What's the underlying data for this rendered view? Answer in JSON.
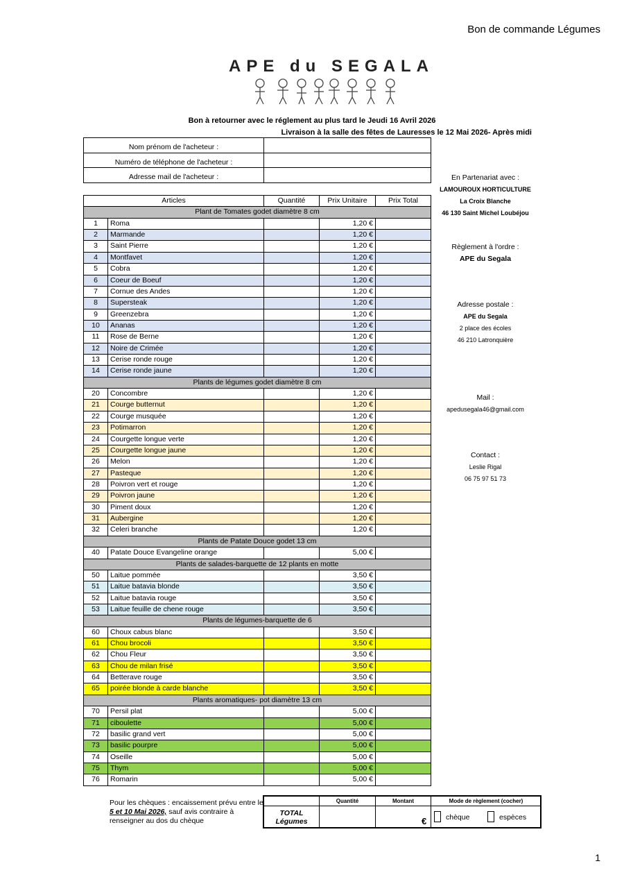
{
  "header": {
    "title": "Bon de commande Légumes",
    "logo": "APE du SEGALA",
    "page_number": "1"
  },
  "instructions": [
    "Bon à retourner avec le réglement au plus tard le Jeudi 16 Avril 2026",
    "Livraison à la salle des fêtes de Lauresses le 12 Mai 2026- Après midi"
  ],
  "buyer_fields": [
    "Nom prénom de l'acheteur :",
    "Numéro de téléphone de l'acheteur :",
    "Adresse mail de l'acheteur :"
  ],
  "table": {
    "columns": [
      "Articles",
      "Quantité",
      "Prix Unitaire",
      "Prix Total"
    ],
    "sections": [
      {
        "title": "Plant de Tomates godet diamètre 8 cm",
        "stripe": "#dae3f3",
        "items": [
          {
            "num": "1",
            "name": "Roma",
            "price": "1,20 €"
          },
          {
            "num": "2",
            "name": "Marmande",
            "price": "1,20 €"
          },
          {
            "num": "3",
            "name": "Saint Pierre",
            "price": "1,20 €"
          },
          {
            "num": "4",
            "name": "Montfavet",
            "price": "1,20 €"
          },
          {
            "num": "5",
            "name": "Cobra",
            "price": "1,20 €"
          },
          {
            "num": "6",
            "name": "Coeur de Boeuf",
            "price": "1,20 €"
          },
          {
            "num": "7",
            "name": "Cornue des Andes",
            "price": "1,20 €"
          },
          {
            "num": "8",
            "name": "Supersteak",
            "price": "1,20 €"
          },
          {
            "num": "9",
            "name": "Greenzebra",
            "price": "1,20 €"
          },
          {
            "num": "10",
            "name": "Ananas",
            "price": "1,20 €"
          },
          {
            "num": "11",
            "name": "Rose de Berne",
            "price": "1,20 €"
          },
          {
            "num": "12",
            "name": "Noire de Crimée",
            "price": "1,20 €"
          },
          {
            "num": "13",
            "name": "Cerise ronde rouge",
            "price": "1,20 €"
          },
          {
            "num": "14",
            "name": "Cerise ronde jaune",
            "price": "1,20 €"
          }
        ]
      },
      {
        "title": "Plants de légumes godet diamètre 8 cm",
        "stripe": "#fff2cc",
        "items": [
          {
            "num": "20",
            "name": "Concombre",
            "price": "1,20 €"
          },
          {
            "num": "21",
            "name": "Courge butternut",
            "price": "1,20 €"
          },
          {
            "num": "22",
            "name": "Courge musquée",
            "price": "1,20 €"
          },
          {
            "num": "23",
            "name": "Potimarron",
            "price": "1,20 €"
          },
          {
            "num": "24",
            "name": "Courgette longue verte",
            "price": "1,20 €"
          },
          {
            "num": "25",
            "name": "Courgette longue jaune",
            "price": "1,20 €"
          },
          {
            "num": "26",
            "name": "Melon",
            "price": "1,20 €"
          },
          {
            "num": "27",
            "name": "Pasteque",
            "price": "1,20 €"
          },
          {
            "num": "28",
            "name": "Poivron vert et rouge",
            "price": "1,20 €"
          },
          {
            "num": "29",
            "name": "Poivron jaune",
            "price": "1,20 €"
          },
          {
            "num": "30",
            "name": "Piment doux",
            "price": "1,20 €"
          },
          {
            "num": "31",
            "name": "Aubergine",
            "price": "1,20 €"
          },
          {
            "num": "32",
            "name": "Celeri branche",
            "price": "1,20 €"
          }
        ]
      },
      {
        "title": "Plants de Patate Douce godet 13 cm",
        "items": [
          {
            "num": "40",
            "name": "Patate Douce Evangeline orange",
            "price": "5,00 €"
          }
        ]
      },
      {
        "title": "Plants de salades-barquette de 12 plants en motte",
        "stripe": "#daeef3",
        "items": [
          {
            "num": "50",
            "name": "Laitue pommée",
            "price": "3,50 €"
          },
          {
            "num": "51",
            "name": "Laitue batavia blonde",
            "price": "3,50 €"
          },
          {
            "num": "52",
            "name": "Laitue batavia rouge",
            "price": "3,50 €"
          },
          {
            "num": "53",
            "name": "Laitue feuille de chene rouge",
            "price": "3,50 €"
          }
        ]
      },
      {
        "title": "Plants de légumes-barquette de 6",
        "stripe": "#ffff00",
        "items": [
          {
            "num": "60",
            "name": "Choux cabus blanc",
            "price": "3,50 €"
          },
          {
            "num": "61",
            "name": "Chou brocoli",
            "price": "3,50 €"
          },
          {
            "num": "62",
            "name": "Chou Fleur",
            "price": "3,50 €"
          },
          {
            "num": "63",
            "name": "Chou de milan frisé",
            "price": "3,50 €"
          },
          {
            "num": "64",
            "name": "Betterave rouge",
            "price": "3,50 €"
          },
          {
            "num": "65",
            "name": "poirée blonde à carde blanche",
            "price": "3,50 €"
          }
        ]
      },
      {
        "title": "Plants aromatiques- pot diamètre 13 cm",
        "stripe": "#92d050",
        "items": [
          {
            "num": "70",
            "name": "Persil plat",
            "price": "5,00 €"
          },
          {
            "num": "71",
            "name": "ciboulette",
            "price": "5,00 €"
          },
          {
            "num": "72",
            "name": "basilic grand vert",
            "price": "5,00 €"
          },
          {
            "num": "73",
            "name": "basilic pourpre",
            "price": "5,00 €"
          },
          {
            "num": "74",
            "name": "Oseille",
            "price": "5,00 €"
          },
          {
            "num": "75",
            "name": "Thym",
            "price": "5,00 €"
          },
          {
            "num": "76",
            "name": "Romarin",
            "price": "5,00 €"
          }
        ]
      }
    ]
  },
  "sidebar": [
    {
      "text": "En Partenariat avec :"
    },
    {
      "text": "LAMOUROUX HORTICULTURE",
      "bold": true,
      "small": true
    },
    {
      "text": "La Croix Blanche",
      "bold": true,
      "small": true
    },
    {
      "text": "46 130 Saint Michel Loubéjou",
      "bold": true,
      "small": true
    },
    {
      "text": "Règlement à l'ordre :"
    },
    {
      "text": "APE du Segala",
      "bold": true
    },
    {
      "text": "Adresse postale :"
    },
    {
      "text": "APE du Segala",
      "bold": true,
      "small": true
    },
    {
      "text": "2 place des écoles",
      "small": true
    },
    {
      "text": "46 210 Latronquière",
      "small": true
    },
    {
      "text": "Mail :"
    },
    {
      "text": "apedusegala46@gmail.com",
      "small": true
    },
    {
      "text": "Contact :"
    },
    {
      "text": "Leslie Rigal",
      "small": true
    },
    {
      "text": "06 75 97 51 73",
      "small": true
    }
  ],
  "footer": {
    "note_start": "Pour les chèques : encaissement prévu entre le",
    "note_dates": "5 et 10 Mai 2026,",
    "note_end": " sauf avis contraire à renseigner au dos du chèque",
    "totals": {
      "quantity_header": "Quantité",
      "amount_header": "Montant",
      "payment_header": "Mode de règlement (cocher)",
      "total_label": "TOTAL Légumes",
      "currency": "€",
      "options": [
        "chèque",
        "espèces"
      ]
    }
  }
}
